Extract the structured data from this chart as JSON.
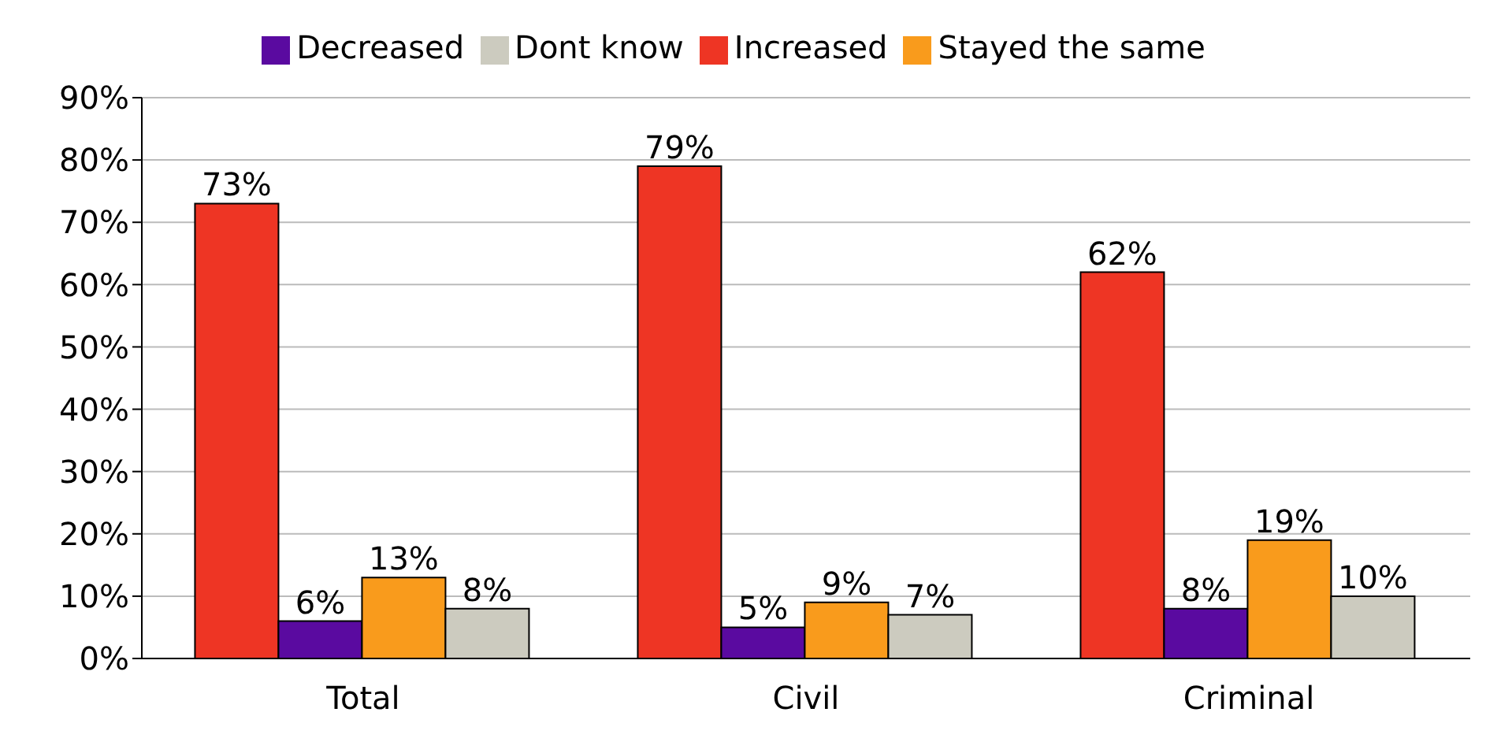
{
  "chart_data": {
    "type": "bar",
    "categories": [
      "Total",
      "Civil",
      "Criminal"
    ],
    "series": [
      {
        "name": "Increased",
        "color": "#ee3524",
        "values": [
          73,
          79,
          62
        ],
        "value_labels": [
          "73%",
          "79%",
          "62%"
        ]
      },
      {
        "name": "Decreased",
        "color": "#5a0aa0",
        "values": [
          6,
          5,
          8
        ],
        "value_labels": [
          "6%",
          "5%",
          "8%"
        ]
      },
      {
        "name": "Stayed the same",
        "color": "#f99b1c",
        "values": [
          13,
          9,
          19
        ],
        "value_labels": [
          "13%",
          "9%",
          "19%"
        ]
      },
      {
        "name": "Dont know",
        "color": "#cccbbf",
        "values": [
          8,
          7,
          10
        ],
        "value_labels": [
          "8%",
          "7%",
          "10%"
        ]
      }
    ],
    "ylim": [
      0,
      90
    ],
    "yticks": [
      {
        "value": 0,
        "label": "0%"
      },
      {
        "value": 10,
        "label": "10%"
      },
      {
        "value": 20,
        "label": "20%"
      },
      {
        "value": 30,
        "label": "30%"
      },
      {
        "value": 40,
        "label": "40%"
      },
      {
        "value": 50,
        "label": "50%"
      },
      {
        "value": 60,
        "label": "60%"
      },
      {
        "value": 70,
        "label": "70%"
      },
      {
        "value": 80,
        "label": "80%"
      },
      {
        "value": 90,
        "label": "90%"
      }
    ],
    "grid": "y",
    "legend": "top"
  }
}
